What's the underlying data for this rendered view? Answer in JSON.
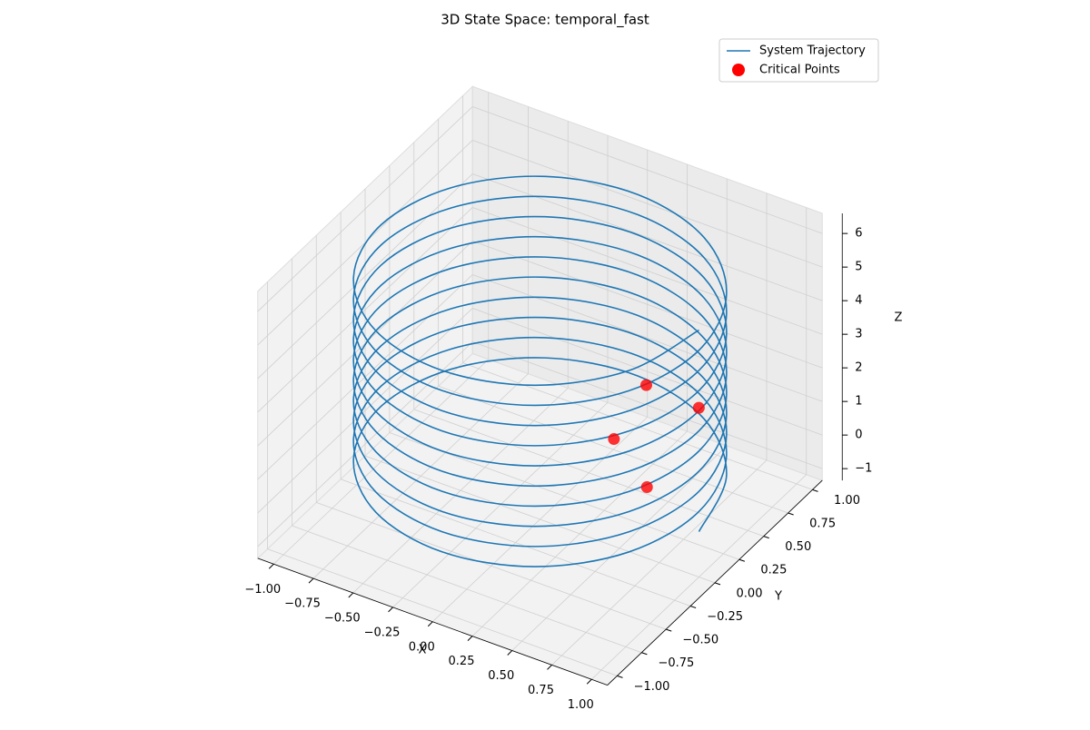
{
  "chart_data": {
    "type": "3d",
    "title": "3D State Space: temporal_fast",
    "xlabel": "X",
    "ylabel": "Y",
    "zlabel": "Z",
    "xlim": [
      -1.1,
      1.1
    ],
    "ylim": [
      -1.1,
      1.1
    ],
    "zlim": [
      -1.35,
      6.6
    ],
    "xticks": [
      {
        "value": -1,
        "label": "−1.00"
      },
      {
        "value": -0.75,
        "label": "−0.75"
      },
      {
        "value": -0.5,
        "label": "−0.50"
      },
      {
        "value": -0.25,
        "label": "−0.25"
      },
      {
        "value": 0,
        "label": "0.00"
      },
      {
        "value": 0.25,
        "label": "0.25"
      },
      {
        "value": 0.5,
        "label": "0.50"
      },
      {
        "value": 0.75,
        "label": "0.75"
      },
      {
        "value": 1,
        "label": "1.00"
      }
    ],
    "yticks": [
      {
        "value": -1,
        "label": "−1.00"
      },
      {
        "value": -0.75,
        "label": "−0.75"
      },
      {
        "value": -0.5,
        "label": "−0.50"
      },
      {
        "value": -0.25,
        "label": "−0.25"
      },
      {
        "value": 0,
        "label": "0.00"
      },
      {
        "value": 0.25,
        "label": "0.25"
      },
      {
        "value": 0.5,
        "label": "0.50"
      },
      {
        "value": 0.75,
        "label": "0.75"
      },
      {
        "value": 1,
        "label": "1.00"
      }
    ],
    "zticks": [
      {
        "value": -1,
        "label": "−1"
      },
      0,
      1,
      2,
      3,
      4,
      5,
      6
    ],
    "grid": true,
    "legend": "upper right",
    "series": [
      {
        "name": "System Trajectory",
        "kind": "line",
        "color": "#1f77b4",
        "x": [
          1,
          0.866,
          0.5,
          0,
          -0.5,
          -0.866,
          -1,
          -0.866,
          -0.5,
          0,
          0.5,
          0.866,
          1,
          0.866,
          0.5,
          0,
          -0.5,
          -0.866,
          -1,
          -0.866,
          -0.5,
          0,
          0.5,
          0.866,
          1,
          0.866,
          0.5,
          0,
          -0.5,
          -0.866,
          -1,
          -0.866,
          -0.5,
          0,
          0.5,
          0.866,
          1,
          0.866,
          0.5,
          0,
          -0.5,
          -0.866,
          -1,
          -0.866,
          -0.5,
          0,
          0.5,
          0.866,
          1,
          0.866,
          0.5,
          0,
          -0.5,
          -0.866,
          -1,
          -0.866,
          -0.5,
          0,
          0.5,
          0.866,
          1,
          0.866,
          0.5,
          0,
          -0.5,
          -0.866,
          -1,
          -0.866,
          -0.5,
          0,
          0.5,
          0.866,
          1,
          0.866,
          0.5,
          0,
          -0.5,
          -0.866,
          -1,
          -0.866,
          -0.5,
          0,
          0.5,
          0.866,
          1,
          0.866,
          0.5,
          0,
          -0.5,
          -0.866,
          -1,
          -0.866,
          -0.5,
          0,
          0.5,
          0.866,
          1,
          0.866,
          0.5,
          0,
          -0.5,
          -0.866,
          -1,
          -0.866,
          -0.5,
          0,
          0.5,
          0.866,
          1,
          0.866,
          0.5,
          0,
          -0.5,
          -0.866,
          -1,
          -0.866,
          -0.5,
          0,
          0.5,
          0.866,
          1
        ],
        "y": [
          0,
          0.5,
          0.866,
          1,
          0.866,
          0.5,
          0,
          -0.5,
          -0.866,
          -1,
          -0.866,
          -0.5,
          0,
          0.5,
          0.866,
          1,
          0.866,
          0.5,
          0,
          -0.5,
          -0.866,
          -1,
          -0.866,
          -0.5,
          0,
          0.5,
          0.866,
          1,
          0.866,
          0.5,
          0,
          -0.5,
          -0.866,
          -1,
          -0.866,
          -0.5,
          0,
          0.5,
          0.866,
          1,
          0.866,
          0.5,
          0,
          -0.5,
          -0.866,
          -1,
          -0.866,
          -0.5,
          0,
          0.5,
          0.866,
          1,
          0.866,
          0.5,
          0,
          -0.5,
          -0.866,
          -1,
          -0.866,
          -0.5,
          0,
          0.5,
          0.866,
          1,
          0.866,
          0.5,
          0,
          -0.5,
          -0.866,
          -1,
          -0.866,
          -0.5,
          0,
          0.5,
          0.866,
          1,
          0.866,
          0.5,
          0,
          -0.5,
          -0.866,
          -1,
          -0.866,
          -0.5,
          0,
          0.5,
          0.866,
          1,
          0.866,
          0.5,
          0,
          -0.5,
          -0.866,
          -1,
          -0.866,
          -0.5,
          0,
          0.5,
          0.866,
          1,
          0.866,
          0.5,
          0,
          -0.5,
          -0.866,
          -1,
          -0.866,
          -0.5,
          0,
          0.5,
          0.866,
          1,
          0.866,
          0.5,
          0,
          -0.5,
          -0.866,
          -1,
          -0.866,
          -0.5,
          0
        ],
        "z": [
          0,
          0.05,
          0.1,
          0.15,
          0.2,
          0.25,
          0.3,
          0.35,
          0.4,
          0.45,
          0.5,
          0.55,
          0.6,
          0.65,
          0.7,
          0.75,
          0.8,
          0.85,
          0.9,
          0.95,
          1,
          1.05,
          1.1,
          1.15,
          1.2,
          1.25,
          1.3,
          1.35,
          1.4,
          1.45,
          1.5,
          1.55,
          1.6,
          1.65,
          1.7,
          1.75,
          1.8,
          1.85,
          1.9,
          1.95,
          2,
          2.05,
          2.1,
          2.15,
          2.2,
          2.25,
          2.3,
          2.35,
          2.4,
          2.45,
          2.5,
          2.55,
          2.6,
          2.65,
          2.7,
          2.75,
          2.8,
          2.85,
          2.9,
          2.95,
          3,
          3.05,
          3.1,
          3.15,
          3.2,
          3.25,
          3.3,
          3.35,
          3.4,
          3.45,
          3.5,
          3.55,
          3.6,
          3.65,
          3.7,
          3.75,
          3.8,
          3.85,
          3.9,
          3.95,
          4,
          4.05,
          4.1,
          4.15,
          4.2,
          4.25,
          4.3,
          4.35,
          4.4,
          4.45,
          4.5,
          4.55,
          4.6,
          4.65,
          4.7,
          4.75,
          4.8,
          4.85,
          4.9,
          4.95,
          5,
          5.05,
          5.1,
          5.15,
          5.2,
          5.25,
          5.3,
          5.35,
          5.4,
          5.45,
          5.5,
          5.55,
          5.6,
          5.65,
          5.7,
          5.75,
          5.8,
          5.85,
          5.9,
          5.95,
          6
        ]
      },
      {
        "name": "Critical Points",
        "kind": "scatter",
        "color": "red",
        "x": [
          0.25,
          0.55,
          0.3,
          0.6
        ],
        "y": [
          0.35,
          0.2,
          0.6,
          0.65
        ],
        "z": [
          0.5,
          0,
          1.5,
          1.2
        ]
      }
    ]
  }
}
